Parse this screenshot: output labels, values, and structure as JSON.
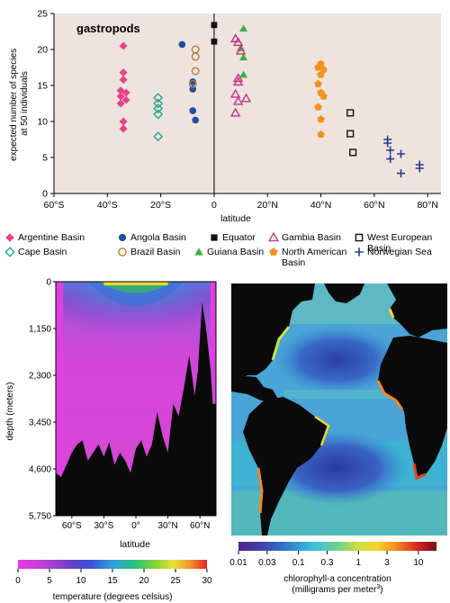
{
  "colors": {
    "argentine": "#e8418a",
    "cape": "#2aa58a",
    "angola": "#1f4fa0",
    "brazil": "#b57a3c",
    "equator": "#111111",
    "guiana": "#3fae49",
    "gambia": "#c2358a",
    "north_american": "#f4921e",
    "west_european": "#111111",
    "norwegian": "#243c8f",
    "plot_bg": "#efe4dd"
  },
  "chart_data": [
    {
      "type": "scatter",
      "title": "gastropods",
      "xlabel": "latitude",
      "ylabel": "expected number of species at 50 individuals",
      "xlim": [
        -60,
        85
      ],
      "ylim": [
        0,
        25
      ],
      "x_ticks": [
        {
          "v": -60,
          "label": "60°S"
        },
        {
          "v": -40,
          "label": "40°S"
        },
        {
          "v": -20,
          "label": "20°S"
        },
        {
          "v": 0,
          "label": "0"
        },
        {
          "v": 20,
          "label": "20°N"
        },
        {
          "v": 40,
          "label": "40°N"
        },
        {
          "v": 60,
          "label": "60°N"
        },
        {
          "v": 80,
          "label": "80°N"
        }
      ],
      "y_ticks": [
        0,
        5,
        10,
        15,
        20,
        25
      ],
      "series": [
        {
          "name": "Argentine Basin",
          "marker": "diamond",
          "color": "argentine",
          "points": [
            [
              -34,
              20.5
            ],
            [
              -34,
              16.8
            ],
            [
              -34,
              15.8
            ],
            [
              -35,
              14.3
            ],
            [
              -33,
              14
            ],
            [
              -35,
              13.5
            ],
            [
              -33,
              13
            ],
            [
              -35,
              12.5
            ],
            [
              -34,
              10
            ],
            [
              -34,
              9
            ]
          ]
        },
        {
          "name": "Cape Basin",
          "marker": "diamond-open",
          "color": "cape",
          "points": [
            [
              -21,
              13.3
            ],
            [
              -21,
              12.5
            ],
            [
              -21,
              11.8
            ],
            [
              -21,
              11
            ],
            [
              -21,
              7.9
            ]
          ]
        },
        {
          "name": "Angola Basin",
          "marker": "circle",
          "color": "angola",
          "points": [
            [
              -12,
              20.7
            ],
            [
              -8,
              15.5
            ],
            [
              -8,
              14.5
            ],
            [
              -8,
              11.5
            ],
            [
              -7,
              10.2
            ]
          ]
        },
        {
          "name": "Brazil Basin",
          "marker": "circle-open",
          "color": "brazil",
          "points": [
            [
              -7,
              20
            ],
            [
              -7,
              19
            ],
            [
              -7,
              17
            ],
            [
              -8,
              15.2
            ]
          ]
        },
        {
          "name": "Equator",
          "marker": "square",
          "color": "equator",
          "points": [
            [
              0,
              23.4
            ],
            [
              0,
              21.1
            ]
          ]
        },
        {
          "name": "Guiana Basin",
          "marker": "triangle",
          "color": "guiana",
          "points": [
            [
              11,
              22.9
            ],
            [
              10,
              20.2
            ],
            [
              11,
              18.9
            ],
            [
              11,
              16.5
            ]
          ]
        },
        {
          "name": "Gambia Basin",
          "marker": "triangle-open",
          "color": "gambia",
          "points": [
            [
              8,
              21.5
            ],
            [
              9,
              21
            ],
            [
              10,
              19.8
            ],
            [
              9,
              16
            ],
            [
              9,
              15.5
            ],
            [
              8,
              13.8
            ],
            [
              12,
              13.2
            ],
            [
              9,
              12.8
            ],
            [
              8,
              11.2
            ]
          ]
        },
        {
          "name": "North American Basin",
          "marker": "pentagon",
          "color": "north_american",
          "points": [
            [
              40,
              18
            ],
            [
              39,
              17.5
            ],
            [
              41,
              17.2
            ],
            [
              40,
              16.5
            ],
            [
              39,
              15.2
            ],
            [
              40,
              14
            ],
            [
              41,
              13.5
            ],
            [
              39,
              12
            ],
            [
              40,
              10.3
            ],
            [
              40,
              8.2
            ]
          ]
        },
        {
          "name": "West European Basin",
          "marker": "square-open",
          "color": "west_european",
          "points": [
            [
              51,
              11.2
            ],
            [
              51,
              8.3
            ],
            [
              52,
              5.7
            ]
          ]
        },
        {
          "name": "Norwegian Sea",
          "marker": "plus",
          "color": "norwegian",
          "points": [
            [
              65,
              7.5
            ],
            [
              65,
              7
            ],
            [
              66,
              6
            ],
            [
              70,
              5.5
            ],
            [
              66,
              4.8
            ],
            [
              77,
              4
            ],
            [
              77,
              3.5
            ],
            [
              70,
              2.8
            ]
          ]
        }
      ]
    },
    {
      "type": "heatmap",
      "xlabel": "latitude",
      "ylabel": "depth (meters)",
      "xlim": [
        -75,
        75
      ],
      "ylim": [
        0,
        5750
      ],
      "x_ticks": [
        {
          "v": -60,
          "label": "60°S"
        },
        {
          "v": -30,
          "label": "30°S"
        },
        {
          "v": 0,
          "label": "0°"
        },
        {
          "v": 30,
          "label": "30°N"
        },
        {
          "v": 60,
          "label": "60°N"
        }
      ],
      "y_ticks": [
        {
          "v": 0,
          "label": "0"
        },
        {
          "v": 1150,
          "label": "1,150"
        },
        {
          "v": 2300,
          "label": "2,300"
        },
        {
          "v": 3450,
          "label": "3,450"
        },
        {
          "v": 4600,
          "label": "4,600"
        },
        {
          "v": 5750,
          "label": "5,750"
        }
      ],
      "colorbar": {
        "label": "temperature (degrees celsius)",
        "range": [
          0,
          30
        ],
        "ticks": [
          0,
          5,
          10,
          15,
          20,
          25,
          30
        ]
      }
    },
    {
      "type": "heatmap",
      "subtype": "map",
      "colorbar": {
        "label": "chlorophyll-a concentration",
        "label_line2_prefix": "(milligrams per meter",
        "label_line2_sup": "3",
        "label_line2_suffix": ")",
        "scale": "log",
        "range": [
          0.01,
          20
        ],
        "ticks": [
          "0.01",
          "0.03",
          "0.1",
          "0.3",
          "1",
          "3",
          "10"
        ]
      }
    }
  ]
}
